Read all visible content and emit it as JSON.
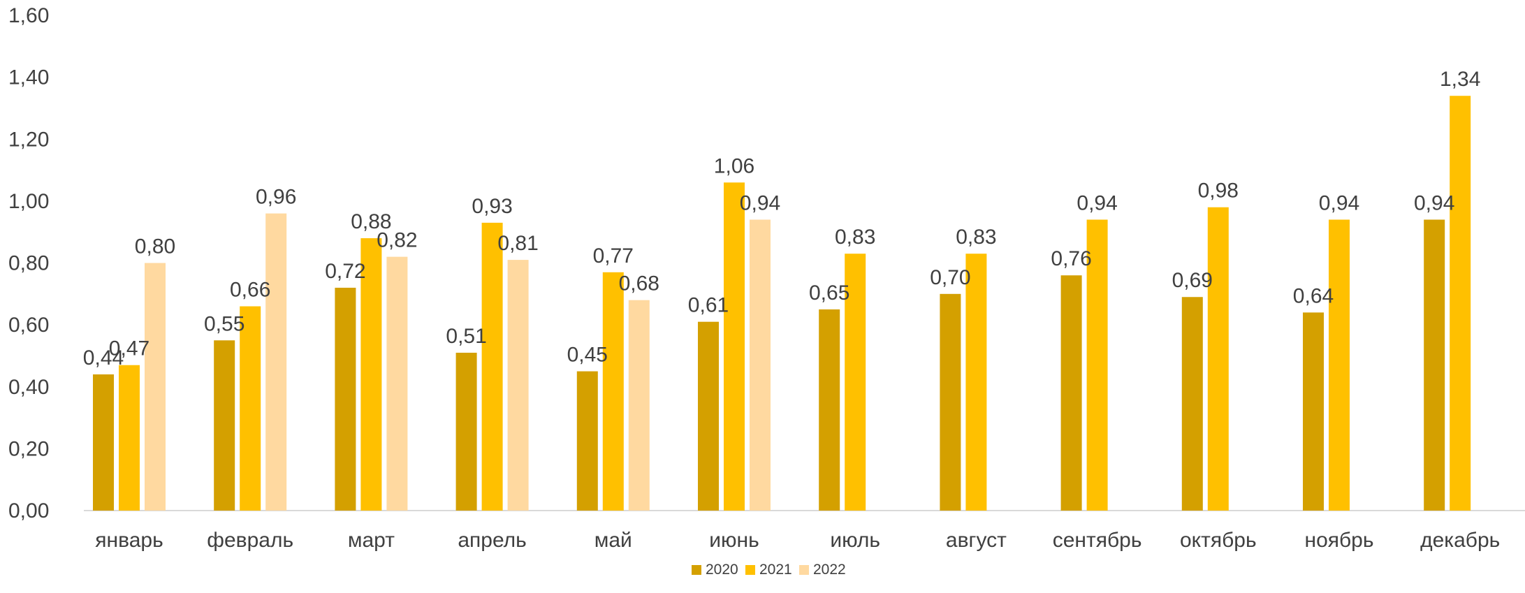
{
  "chart_data": {
    "type": "bar",
    "title": "",
    "xlabel": "",
    "ylabel": "",
    "ylim": [
      0,
      1.6
    ],
    "yticks": [
      "0,00",
      "0,20",
      "0,40",
      "0,60",
      "0,80",
      "1,00",
      "1,20",
      "1,40",
      "1,60"
    ],
    "grid": false,
    "legend_position": "bottom-center",
    "categories": [
      "январь",
      "февраль",
      "март",
      "апрель",
      "май",
      "июнь",
      "июль",
      "август",
      "сентябрь",
      "октябрь",
      "ноябрь",
      "декабрь"
    ],
    "series": [
      {
        "name": "2020",
        "color": "#D4A000",
        "values": [
          0.44,
          0.55,
          0.72,
          0.51,
          0.45,
          0.61,
          0.65,
          0.7,
          0.76,
          0.69,
          0.64,
          0.94
        ],
        "labels": [
          "0,44",
          "0,55",
          "0,72",
          "0,51",
          "0,45",
          "0,61",
          "0,65",
          "0,70",
          "0,76",
          "0,69",
          "0,64",
          "0,94"
        ]
      },
      {
        "name": "2021",
        "color": "#FFC000",
        "values": [
          0.47,
          0.66,
          0.88,
          0.93,
          0.77,
          1.06,
          0.83,
          0.83,
          0.94,
          0.98,
          0.94,
          1.34
        ],
        "labels": [
          "0,47",
          "0,66",
          "0,88",
          "0,93",
          "0,77",
          "1,06",
          "0,83",
          "0,83",
          "0,94",
          "0,98",
          "0,94",
          "1,34"
        ]
      },
      {
        "name": "2022",
        "color": "#FFD9A0",
        "values": [
          0.8,
          0.96,
          0.82,
          0.81,
          0.68,
          0.94,
          null,
          null,
          null,
          null,
          null,
          null
        ],
        "labels": [
          "0,80",
          "0,96",
          "0,82",
          "0,81",
          "0,68",
          "0,94",
          null,
          null,
          null,
          null,
          null,
          null
        ]
      }
    ]
  }
}
